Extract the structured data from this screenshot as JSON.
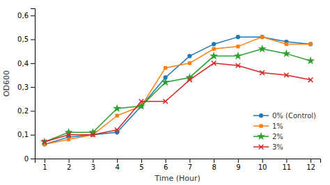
{
  "chart_data": {
    "type": "line",
    "x_label": "Time (Hour)",
    "y_label": "OD600",
    "x": [
      1,
      2,
      3,
      4,
      5,
      6,
      7,
      8,
      9,
      10,
      11,
      12
    ],
    "series": [
      {
        "name": "0% (Control)",
        "marker": "circle",
        "values": [
          0.06,
          0.09,
          0.1,
          0.11,
          0.22,
          0.34,
          0.43,
          0.48,
          0.51,
          0.51,
          0.49,
          0.48
        ]
      },
      {
        "name": "1%",
        "marker": "square",
        "values": [
          0.06,
          0.08,
          0.1,
          0.18,
          0.22,
          0.38,
          0.4,
          0.46,
          0.47,
          0.51,
          0.48,
          0.48
        ]
      },
      {
        "name": "2%",
        "marker": "star",
        "values": [
          0.07,
          0.11,
          0.11,
          0.21,
          0.22,
          0.32,
          0.34,
          0.43,
          0.43,
          0.46,
          0.44,
          0.41
        ]
      },
      {
        "name": "3%",
        "marker": "x",
        "values": [
          0.07,
          0.1,
          0.1,
          0.12,
          0.24,
          0.24,
          0.33,
          0.4,
          0.39,
          0.36,
          0.35,
          0.33
        ]
      }
    ],
    "xlim": [
      0.6,
      12.4
    ],
    "xticks": [
      1,
      2,
      3,
      4,
      5,
      6,
      7,
      8,
      9,
      10,
      11,
      12
    ],
    "ylim": [
      0,
      0.63
    ],
    "yticks": [
      0,
      {
        "value": 0.1,
        "label": "0,1"
      },
      {
        "value": 0.2,
        "label": "0,2"
      },
      {
        "value": 0.3,
        "label": "0,3"
      },
      {
        "value": 0.4,
        "label": "0,4"
      },
      {
        "value": 0.5,
        "label": "0,5"
      },
      {
        "value": 0.6,
        "label": "0,6"
      }
    ],
    "grid": false,
    "legend": "lower right"
  }
}
